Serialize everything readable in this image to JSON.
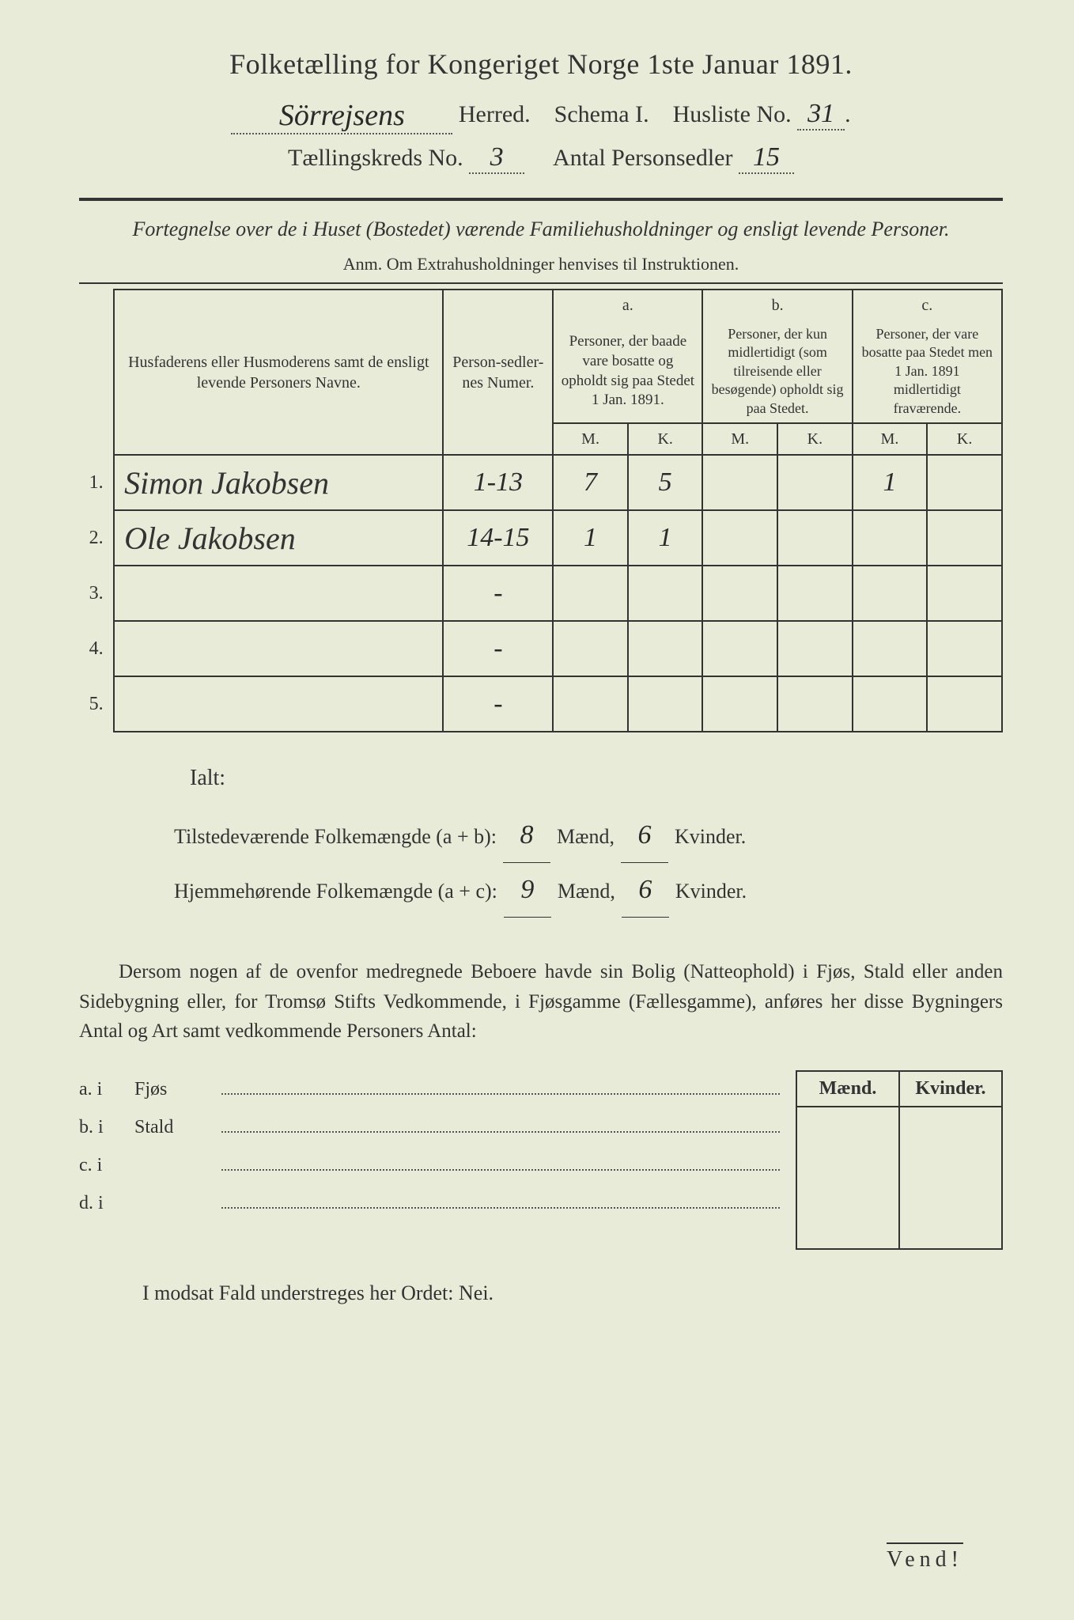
{
  "title": "Folketælling for Kongeriget Norge 1ste Januar 1891.",
  "line2": {
    "herred_hw": "Sörrejsens",
    "herred_label": "Herred.",
    "schema_label": "Schema I.",
    "husliste_label": "Husliste No.",
    "husliste_no": "31"
  },
  "line3": {
    "kreds_label": "Tællingskreds No.",
    "kreds_no": "3",
    "antal_label": "Antal Personsedler",
    "antal_val": "15"
  },
  "subhead": "Fortegnelse over de i Huset (Bostedet) værende Familiehusholdninger og ensligt levende Personer.",
  "anm": "Anm. Om Extrahusholdninger henvises til Instruktionen.",
  "headers": {
    "col1": "Husfaderens eller Husmoderens samt de ensligt levende Personers Navne.",
    "col2": "Person-sedler-nes Numer.",
    "a_letter": "a.",
    "a_desc": "Personer, der baade vare bosatte og opholdt sig paa Stedet 1 Jan. 1891.",
    "b_letter": "b.",
    "b_desc": "Personer, der kun midlertidigt (som tilreisende eller besøgende) opholdt sig paa Stedet.",
    "c_letter": "c.",
    "c_desc": "Personer, der vare bosatte paa Stedet men 1 Jan. 1891 midlertidigt fraværende.",
    "M": "M.",
    "K": "K."
  },
  "rows": [
    {
      "n": "1.",
      "name": "Simon Jakobsen",
      "num": "1-13",
      "aM": "7",
      "aK": "5",
      "bM": "",
      "bK": "",
      "cM": "1",
      "cK": ""
    },
    {
      "n": "2.",
      "name": "Ole Jakobsen",
      "num": "14-15",
      "aM": "1",
      "aK": "1",
      "bM": "",
      "bK": "",
      "cM": "",
      "cK": ""
    },
    {
      "n": "3.",
      "name": "",
      "num": "-",
      "aM": "",
      "aK": "",
      "bM": "",
      "bK": "",
      "cM": "",
      "cK": ""
    },
    {
      "n": "4.",
      "name": "",
      "num": "-",
      "aM": "",
      "aK": "",
      "bM": "",
      "bK": "",
      "cM": "",
      "cK": ""
    },
    {
      "n": "5.",
      "name": "",
      "num": "-",
      "aM": "",
      "aK": "",
      "bM": "",
      "bK": "",
      "cM": "",
      "cK": ""
    }
  ],
  "ialt": {
    "label": "Ialt:",
    "line1_pre": "Tilstedeværende Folkemængde (a + b):",
    "line1_m": "8",
    "line1_k": "6",
    "line2_pre": "Hjemmehørende Folkemængde (a + c):",
    "line2_m": "9",
    "line2_k": "6",
    "maend": "Mænd,",
    "kvinder": "Kvinder."
  },
  "paragraph": "Dersom nogen af de ovenfor medregnede Beboere havde sin Bolig (Natteophold) i Fjøs, Stald eller anden Sidebygning eller, for Tromsø Stifts Vedkommende, i Fjøsgamme (Fællesgamme), anføres her disse Bygningers Antal og Art samt vedkommende Personers Antal:",
  "outbuildings": {
    "maend": "Mænd.",
    "kvinder": "Kvinder.",
    "items": [
      {
        "letter": "a. i",
        "name": "Fjøs"
      },
      {
        "letter": "b. i",
        "name": "Stald"
      },
      {
        "letter": "c. i",
        "name": ""
      },
      {
        "letter": "d. i",
        "name": ""
      }
    ]
  },
  "modsat": "I modsat Fald understreges her Ordet: Nei.",
  "vend": "Vend!"
}
